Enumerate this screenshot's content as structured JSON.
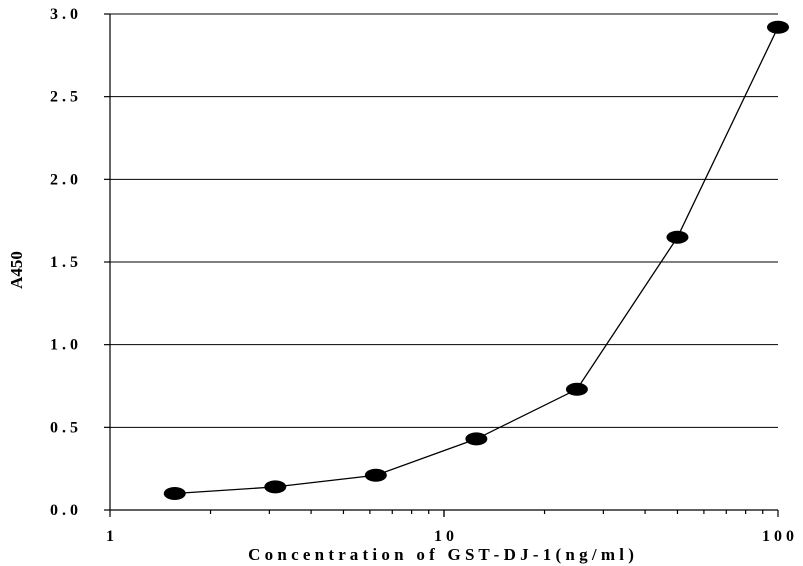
{
  "chart_data": {
    "type": "line",
    "xlabel": "C o n c e n t r a t i o n   o f   G S T - D J - 1 ( n g / m l )",
    "ylabel": "A450",
    "x_scale": "log",
    "xlim": [
      1,
      100
    ],
    "ylim": [
      0,
      3.0
    ],
    "grid": "horizontal",
    "x_ticks": [
      {
        "value": 1,
        "label": "1"
      },
      {
        "value": 10,
        "label": "1 0"
      },
      {
        "value": 100,
        "label": "1 0 0"
      }
    ],
    "y_ticks": [
      {
        "value": 0,
        "label": "0 . 0"
      },
      {
        "value": 0.5,
        "label": "0 . 5"
      },
      {
        "value": 1.0,
        "label": "1 . 0"
      },
      {
        "value": 1.5,
        "label": "1 . 5"
      },
      {
        "value": 2.0,
        "label": "2 . 0"
      },
      {
        "value": 2.5,
        "label": "2 . 5"
      },
      {
        "value": 3.0,
        "label": "3 . 0"
      }
    ],
    "series": [
      {
        "x": [
          1.5625,
          3.125,
          6.25,
          12.5,
          25,
          50,
          100
        ],
        "y": [
          0.1,
          0.14,
          0.21,
          0.43,
          0.73,
          1.65,
          2.92
        ]
      }
    ]
  }
}
